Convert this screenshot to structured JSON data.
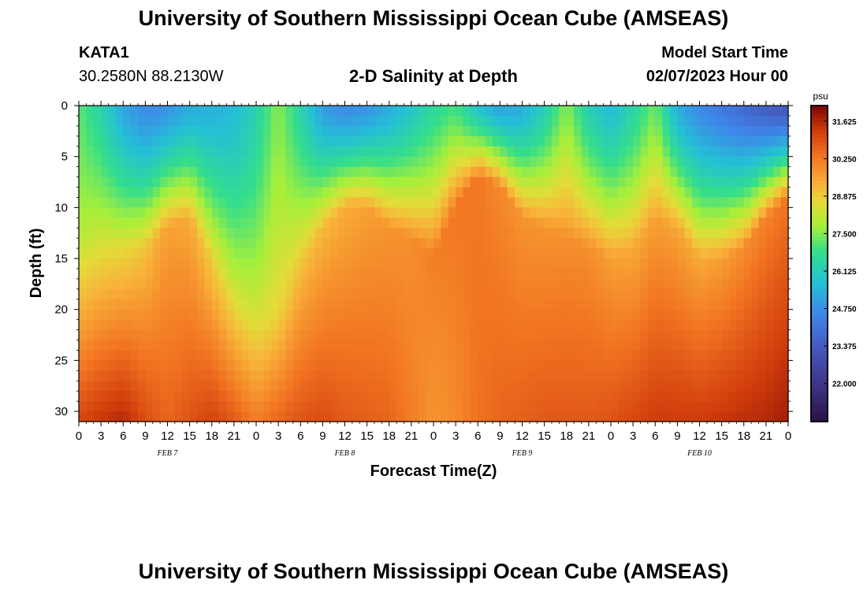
{
  "header": {
    "title": "University of Southern Mississippi Ocean Cube (AMSEAS)",
    "station_id": "KATA1",
    "station_coords": "30.2580N  88.2130W",
    "subtitle": "2-D Salinity at Depth",
    "model_start_label": "Model Start Time",
    "model_start_value": "02/07/2023 Hour 00"
  },
  "footer": {
    "title": "University of Southern Mississippi Ocean Cube (AMSEAS)"
  },
  "chart_data": {
    "type": "heatmap",
    "title": "2-D Salinity at Depth",
    "xlabel": "Forecast Time(Z)",
    "ylabel": "Depth (ft)",
    "xlim_hours": [
      0,
      96
    ],
    "ylim_ft": [
      0,
      31
    ],
    "y_inverted": true,
    "x_tick_labels": [
      "0",
      "3",
      "6",
      "9",
      "12",
      "15",
      "18",
      "21",
      "0",
      "3",
      "6",
      "9",
      "12",
      "15",
      "18",
      "21",
      "0",
      "3",
      "6",
      "9",
      "12",
      "15",
      "18",
      "21",
      "0",
      "3",
      "6",
      "9",
      "12",
      "15",
      "18",
      "21",
      "0"
    ],
    "x_tick_step_hours": 3,
    "day_labels": [
      {
        "label": "FEB 7",
        "hour": 12
      },
      {
        "label": "FEB 8",
        "hour": 36
      },
      {
        "label": "FEB 9",
        "hour": 60
      },
      {
        "label": "FEB 10",
        "hour": 84
      }
    ],
    "y_ticks": [
      0,
      5,
      10,
      15,
      20,
      25,
      30
    ],
    "colorbar": {
      "unit": "psu",
      "vmin": 20.6,
      "vmax": 32.2,
      "tick_labels": [
        "31.625",
        "30.250",
        "28.875",
        "27.500",
        "26.125",
        "24.750",
        "23.375",
        "22.000"
      ],
      "tick_values": [
        31.625,
        30.25,
        28.875,
        27.5,
        26.125,
        24.75,
        23.375,
        22.0
      ]
    },
    "grid": {
      "time_step_hours": 1,
      "depth_step_ft": 1,
      "time_nodes_hours": [
        0,
        3,
        6,
        9,
        12,
        15,
        18,
        21,
        24,
        27,
        30,
        33,
        36,
        39,
        42,
        45,
        48,
        51,
        54,
        57,
        60,
        63,
        66,
        69,
        72,
        75,
        78,
        81,
        84,
        87,
        90,
        93,
        96
      ],
      "surface_salinity": [
        27.2,
        26.4,
        25.2,
        24.6,
        24.8,
        25.3,
        25.4,
        25.6,
        26.3,
        27.6,
        26.4,
        25.0,
        24.6,
        24.8,
        25.3,
        25.9,
        26.6,
        27.0,
        25.8,
        25.1,
        25.3,
        26.2,
        27.6,
        26.2,
        25.6,
        26.4,
        27.4,
        25.3,
        24.6,
        24.2,
        23.8,
        23.4,
        23.2
      ],
      "bottom_salinity": [
        31.1,
        31.4,
        31.6,
        31.0,
        30.6,
        30.9,
        31.2,
        30.8,
        30.2,
        30.6,
        30.9,
        31.0,
        30.8,
        30.7,
        30.6,
        30.2,
        29.8,
        30.0,
        30.4,
        30.6,
        30.7,
        30.8,
        30.8,
        30.8,
        30.9,
        31.1,
        31.3,
        31.3,
        31.3,
        31.4,
        31.5,
        31.6,
        31.8
      ],
      "halocline_depth_ft": [
        13,
        13,
        14,
        14,
        12,
        11,
        15,
        19,
        22,
        21,
        16,
        12,
        10,
        10,
        12,
        13,
        15,
        10,
        7,
        8,
        11,
        12,
        13,
        14,
        15,
        14,
        11,
        12,
        15,
        15,
        14,
        11,
        9
      ],
      "mid_layer_salinity": [
        28.0,
        28.3,
        28.6,
        29.0,
        29.6,
        29.4,
        28.8,
        28.5,
        28.6,
        28.8,
        29.1,
        29.2,
        29.4,
        29.6,
        29.8,
        29.9,
        30.2,
        30.3,
        30.3,
        30.0,
        29.8,
        29.8,
        29.9,
        29.9,
        29.6,
        29.4,
        29.6,
        29.5,
        29.4,
        29.6,
        29.9,
        30.1,
        30.3
      ]
    }
  }
}
